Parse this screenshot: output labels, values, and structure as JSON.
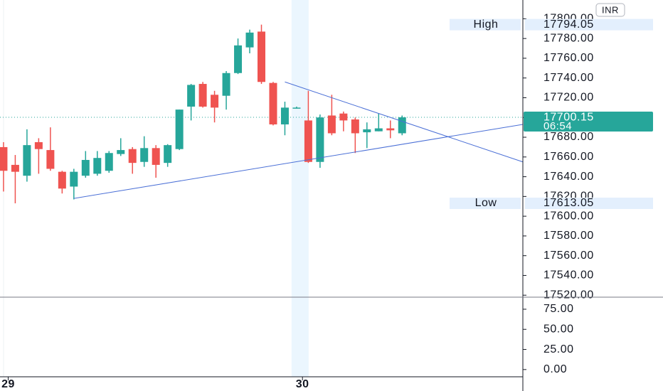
{
  "chart_data": {
    "type": "candlestick",
    "currency": "INR",
    "xlim": [
      -0.3,
      44.3
    ],
    "xticks": [
      {
        "value": 0.4,
        "label": "29"
      },
      {
        "value": 25.5,
        "label": "30"
      }
    ],
    "ylim": [
      17518,
      17819
    ],
    "yticks": [
      {
        "value": 17520,
        "label": "17520.00"
      },
      {
        "value": 17540,
        "label": "17540.00"
      },
      {
        "value": 17560,
        "label": "17560.00"
      },
      {
        "value": 17580,
        "label": "17580.00"
      },
      {
        "value": 17600,
        "label": "17600.00"
      },
      {
        "value": 17620,
        "label": "17620.00"
      },
      {
        "value": 17640,
        "label": "17640.00"
      },
      {
        "value": 17660,
        "label": "17660.00"
      },
      {
        "value": 17680,
        "label": "17680.00"
      },
      {
        "value": 17700,
        "label": "17700.00"
      },
      {
        "value": 17720,
        "label": "17720.00"
      },
      {
        "value": 17740,
        "label": "17740.00"
      },
      {
        "value": 17760,
        "label": "17760.00"
      },
      {
        "value": 17780,
        "label": "17780.00"
      },
      {
        "value": 17800,
        "label": "17800.00"
      }
    ],
    "up_color": "#26a69a",
    "down_color": "#ef5350",
    "open": [
      17670,
      17652,
      17641,
      17675,
      17667,
      17645,
      17630,
      17641,
      17643,
      17646,
      17663,
      17668,
      17655,
      17669,
      17654,
      17668,
      17711,
      17734,
      17723,
      17722,
      17745,
      17771,
      17787,
      17735,
      17693,
      17710,
      17697,
      17655,
      17702,
      17704,
      17698,
      17685,
      17686,
      17689,
      17684
    ],
    "high": [
      17675,
      17662,
      17688,
      17679,
      17690,
      17646,
      17648,
      17666,
      17666,
      17666,
      17679,
      17670,
      17681,
      17672,
      17673,
      17708,
      17734,
      17736,
      17727,
      17747,
      17780,
      17789,
      17794.05,
      17736,
      17716,
      17711,
      17727,
      17703,
      17723,
      17706,
      17700,
      17695,
      17704,
      17697,
      17702
    ],
    "low": [
      17625,
      17613.05,
      17635,
      17643,
      17646,
      17623,
      17617,
      17639,
      17641,
      17644,
      17661,
      17643,
      17650,
      17639,
      17650,
      17667,
      17697,
      17710,
      17695,
      17708,
      17744,
      17765,
      17734,
      17692,
      17682,
      17709,
      17654,
      17649,
      17682,
      17686,
      17664,
      17669,
      17686,
      17679,
      17682
    ],
    "close": [
      17646,
      17645,
      17672,
      17668,
      17648,
      17628,
      17645,
      17657,
      17659,
      17664,
      17667,
      17654,
      17669,
      17652,
      17672,
      17708,
      17733,
      17711,
      17710,
      17745,
      17773,
      17786,
      17736,
      17693,
      17710,
      17710,
      17655,
      17700,
      17684,
      17697,
      17684,
      17688,
      17689,
      17687,
      17700.15
    ],
    "trendlines": [
      {
        "x": [
          24,
          44.3
        ],
        "y": [
          17736,
          17655
        ],
        "color": "#4a6fd6"
      },
      {
        "x": [
          6,
          44.3
        ],
        "y": [
          17618,
          17693
        ],
        "color": "#4a6fd6"
      }
    ],
    "high_marker": {
      "label": "High",
      "value": 17794.05,
      "value_label": "17794.05"
    },
    "low_marker": {
      "label": "Low",
      "value": 17613.05,
      "value_label": "17613.05"
    },
    "last_price": {
      "value": 17700.15,
      "value_label": "17700.15",
      "countdown": "06:54",
      "color": "#26a69a"
    },
    "session_break": 25.3,
    "indicator_pane": {
      "ylim": [
        -9,
        90
      ],
      "yticks": [
        {
          "value": 0,
          "label": "0.00"
        },
        {
          "value": 25,
          "label": "25.00"
        },
        {
          "value": 50,
          "label": "50.00"
        },
        {
          "value": 75,
          "label": "75.00"
        }
      ]
    }
  }
}
